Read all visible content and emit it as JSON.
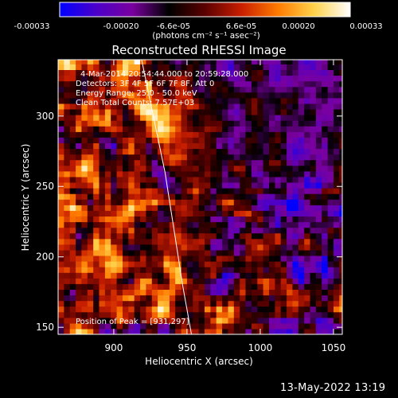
{
  "colorbar": {
    "ticks": [
      "-0.00033",
      "-0.00020",
      "-6.6e-05",
      "6.6e-05",
      "0.00020",
      "0.00033"
    ],
    "units": "(photons cm⁻² s⁻¹ asec⁻²)",
    "range": [
      -0.00033,
      0.00033
    ],
    "colormap": [
      "#0000ff",
      "#4b00c8",
      "#7a00a0",
      "#000000",
      "#5a0000",
      "#c81e00",
      "#ff7a00",
      "#ffd24a",
      "#ffffff"
    ]
  },
  "chart_data": {
    "type": "heatmap",
    "title": "Reconstructed RHESSI Image",
    "xlabel": "Heliocentric X (arcsec)",
    "ylabel": "Heliocentric Y (arcsec)",
    "xlim": [
      862,
      1056
    ],
    "ylim": [
      145,
      340
    ],
    "xticks": [
      900,
      950,
      1000,
      1050
    ],
    "yticks": [
      150,
      200,
      250,
      300
    ],
    "annotations": [
      "4-Mar-2014 20:54:44.000 to 20:59:28.000",
      "Detectors: 3F 4F 5F 6F 7F 8F, Att 0",
      "Energy Range: 25.0 - 50.0 keV",
      "Clean      Total Counts: 7.57E+03"
    ],
    "peak_label": "Position of Peak = [931,297]",
    "peak": [
      931,
      297
    ],
    "limb_curve": [
      [
        919,
        340
      ],
      [
        927,
        300
      ],
      [
        935,
        260
      ],
      [
        941,
        220
      ],
      [
        947,
        180
      ],
      [
        953,
        145
      ]
    ]
  },
  "timestamp": "13-May-2022 13:19"
}
